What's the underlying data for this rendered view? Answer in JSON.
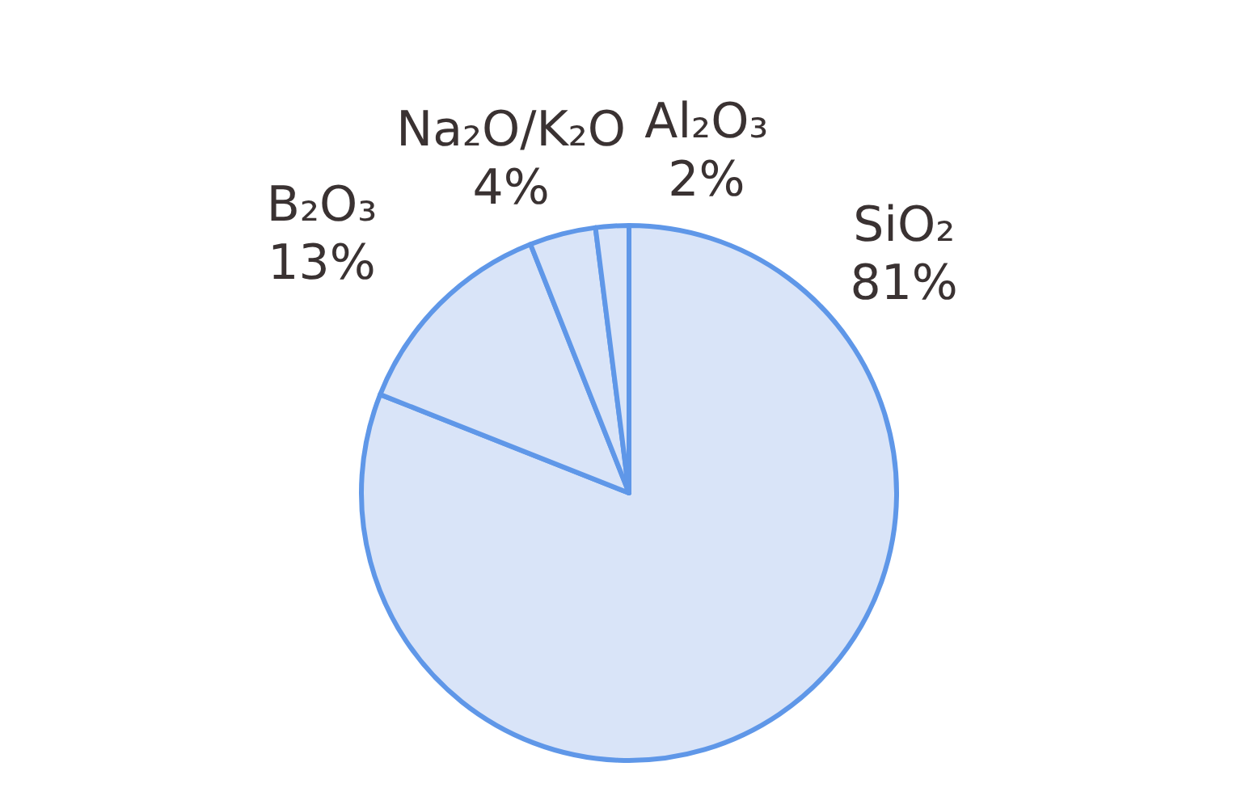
{
  "chart_data": {
    "type": "pie",
    "categories": [
      "SiO₂",
      "B₂O₃",
      "Na₂O/K₂O",
      "Al₂O₃"
    ],
    "values": [
      81,
      13,
      4,
      2
    ],
    "colors": [
      "#d9e4f8",
      "#d9e4f8",
      "#d9e4f8",
      "#d9e4f8"
    ],
    "value_labels": [
      "81%",
      "13%",
      "4%",
      "2%"
    ],
    "legend": false
  }
}
